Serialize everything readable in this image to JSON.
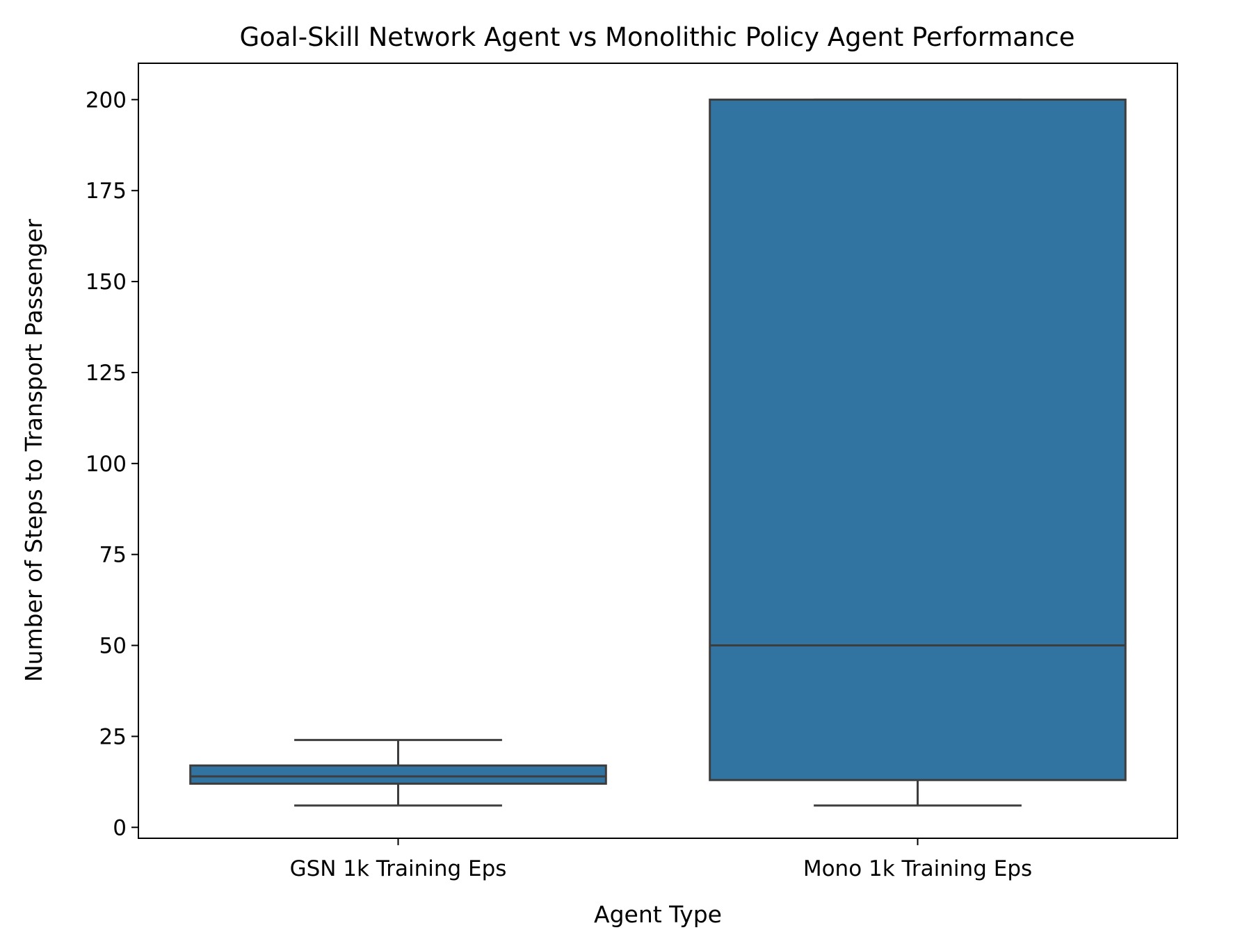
{
  "chart_data": {
    "type": "box",
    "title": "Goal-Skill Network Agent vs Monolithic Policy Agent Performance",
    "xlabel": "Agent Type",
    "ylabel": "Number of Steps to Transport Passenger",
    "ylim": [
      -3,
      210
    ],
    "yticks": [
      0,
      25,
      50,
      75,
      100,
      125,
      150,
      175,
      200
    ],
    "categories": [
      "GSN 1k Training Eps",
      "Mono 1k Training Eps"
    ],
    "boxes": [
      {
        "category": "GSN 1k Training Eps",
        "whisker_low": 6,
        "q1": 12,
        "median": 14,
        "q3": 17,
        "whisker_high": 24
      },
      {
        "category": "Mono 1k Training Eps",
        "whisker_low": 6,
        "q1": 13,
        "median": 50,
        "q3": 200,
        "whisker_high": 200
      }
    ],
    "grid": false,
    "box_color": "#3274a1",
    "line_color": "#3d3d3d"
  }
}
